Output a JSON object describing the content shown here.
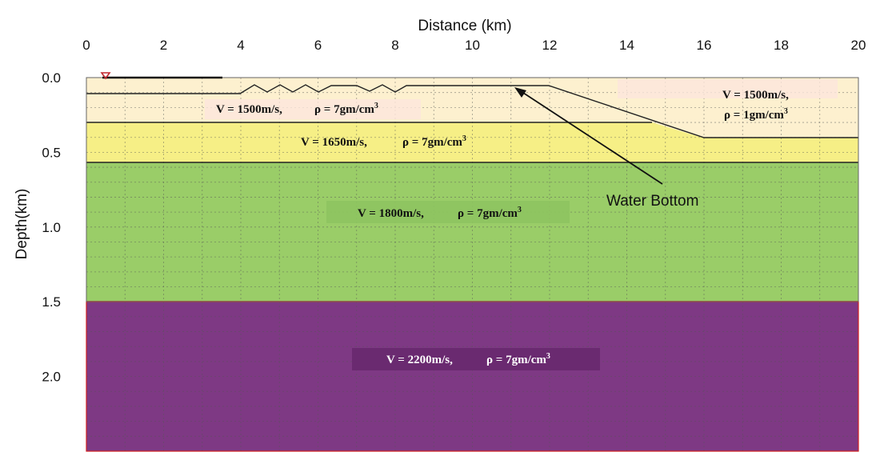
{
  "axes": {
    "x_title": "Distance (km)",
    "y_title": "Depth(km)",
    "x_ticks": [
      "0",
      "2",
      "4",
      "6",
      "8",
      "10",
      "12",
      "14",
      "16",
      "18",
      "20"
    ],
    "y_ticks": [
      "0.0",
      "0.5",
      "1.0",
      "1.5",
      "2.0"
    ],
    "x_range_km": [
      0,
      20
    ],
    "y_range_km": [
      0,
      2.5
    ]
  },
  "layers": {
    "water_left": {
      "velocity": "V = 1500m/s,",
      "density": "ρ = 7gm/cm",
      "color": "#fdf0cf"
    },
    "water_right": {
      "velocity": "V = 1500m/s,",
      "density": "ρ = 1gm/cm",
      "color": "#fdf0cf"
    },
    "layer_yellow": {
      "velocity": "V = 1650m/s,",
      "density": "ρ = 7gm/cm",
      "color": "#f6ef86"
    },
    "layer_green": {
      "velocity": "V = 1800m/s,",
      "density": "ρ = 7gm/cm",
      "color": "#9acd68"
    },
    "layer_purple": {
      "velocity": "V = 2200m/s,",
      "density": "ρ = 7gm/cm",
      "color": "#7e3984"
    },
    "superscript": "3"
  },
  "annotation": {
    "text": "Water Bottom"
  },
  "source_marker": {
    "icon": "inverted-triangle-source-icon",
    "color": "#c0272d"
  }
}
